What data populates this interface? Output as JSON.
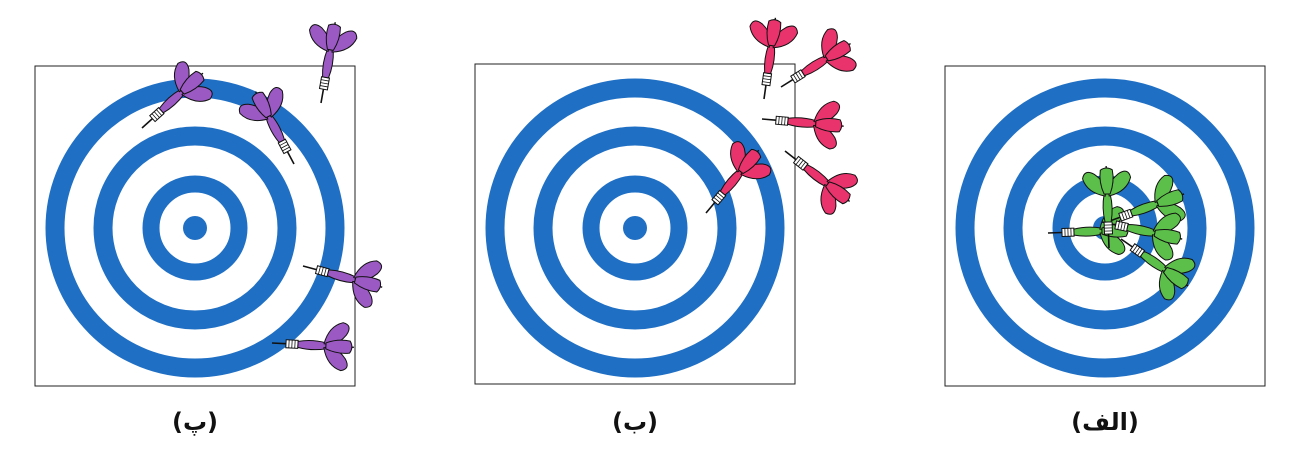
{
  "colors": {
    "ring": "#1f6fc4",
    "panel_left_darts": "#9b59c4",
    "panel_middle_darts": "#e8336d",
    "panel_right_darts": "#5cbf4a",
    "frame": "#222222"
  },
  "panels": [
    {
      "caption": "(پ)",
      "dart_color_key": "panel_left_darts",
      "dart_count": 5
    },
    {
      "caption": "(ب)",
      "dart_color_key": "panel_middle_darts",
      "dart_count": 5
    },
    {
      "caption": "(الف)",
      "dart_color_key": "panel_right_darts",
      "dart_count": 5
    }
  ]
}
